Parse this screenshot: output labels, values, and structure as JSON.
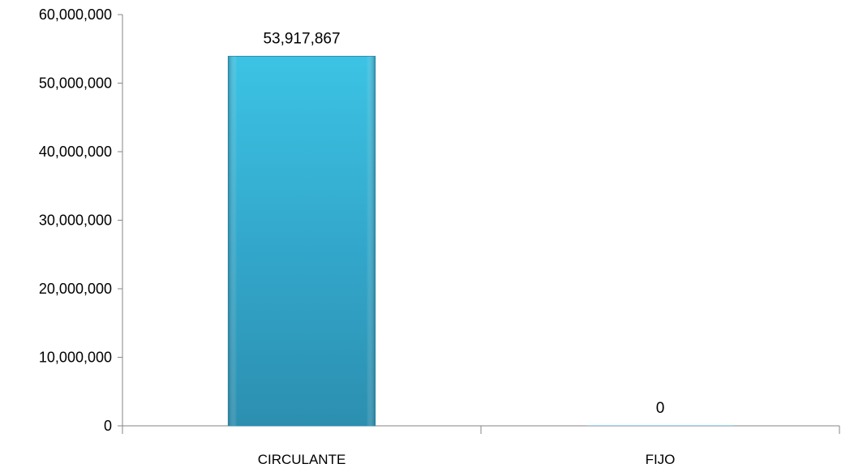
{
  "chart_data": {
    "type": "bar",
    "categories": [
      "CIRCULANTE",
      "FIJO"
    ],
    "values": [
      53917867,
      0
    ],
    "data_labels": [
      "53,917,867",
      "0"
    ],
    "ylim": [
      0,
      60000000
    ],
    "yticks": [
      0,
      10000000,
      20000000,
      30000000,
      40000000,
      50000000,
      60000000
    ],
    "ytick_labels": [
      "0",
      "10,000,000",
      "20,000,000",
      "30,000,000",
      "40,000,000",
      "50,000,000",
      "60,000,000"
    ],
    "grid": false,
    "legend": "none",
    "bar_color": "#38B4D6",
    "bar_color_dark": "#2A8AA6"
  }
}
